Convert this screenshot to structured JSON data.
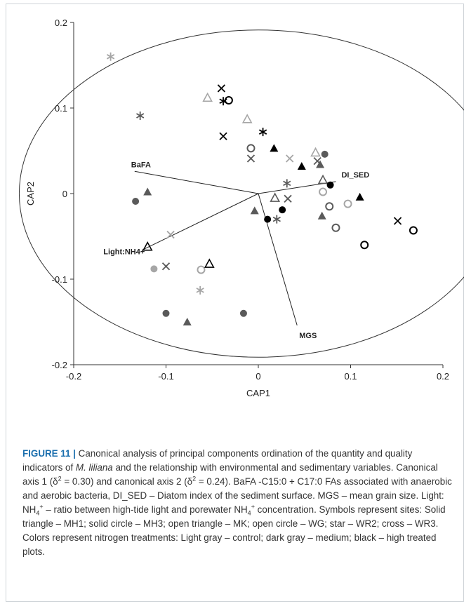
{
  "chart_data": {
    "type": "scatter",
    "xlabel": "CAP1",
    "ylabel": "CAP2",
    "xlim": [
      -0.2,
      0.2
    ],
    "ylim": [
      -0.2,
      0.2
    ],
    "x_ticks": [
      "-0.2",
      "-0.1",
      "0",
      "0.1",
      "0.2"
    ],
    "y_ticks": [
      "0.2",
      "0.1",
      "0",
      "-0.1",
      "-0.2"
    ],
    "grid": false,
    "colors": {
      "light": "#a6a6a6",
      "medium": "#5a5a5a",
      "high": "#000000",
      "vector": "#222222"
    },
    "vectors": [
      {
        "label": "BaFA",
        "x": -0.134,
        "y": 0.026
      },
      {
        "label": "DI_SED",
        "x": 0.084,
        "y": 0.014
      },
      {
        "label": "Light:NH4+",
        "x": -0.126,
        "y": -0.066
      },
      {
        "label": "MGS",
        "x": 0.042,
        "y": -0.154
      }
    ],
    "points": [
      {
        "x": -0.16,
        "y": 0.16,
        "marker": "star",
        "shade": "light"
      },
      {
        "x": -0.128,
        "y": 0.091,
        "marker": "star",
        "shade": "medium"
      },
      {
        "x": -0.04,
        "y": 0.123,
        "marker": "cross",
        "shade": "high"
      },
      {
        "x": -0.055,
        "y": 0.112,
        "marker": "open-triangle",
        "shade": "light"
      },
      {
        "x": -0.038,
        "y": 0.108,
        "marker": "star",
        "shade": "high"
      },
      {
        "x": -0.032,
        "y": 0.109,
        "marker": "open-circle",
        "shade": "high"
      },
      {
        "x": -0.038,
        "y": 0.067,
        "marker": "cross",
        "shade": "high"
      },
      {
        "x": -0.012,
        "y": 0.087,
        "marker": "open-triangle",
        "shade": "light"
      },
      {
        "x": 0.005,
        "y": 0.072,
        "marker": "star",
        "shade": "high"
      },
      {
        "x": -0.008,
        "y": 0.053,
        "marker": "open-circle",
        "shade": "medium"
      },
      {
        "x": -0.008,
        "y": 0.041,
        "marker": "cross",
        "shade": "medium"
      },
      {
        "x": 0.017,
        "y": 0.053,
        "marker": "solid-triangle",
        "shade": "high"
      },
      {
        "x": 0.034,
        "y": 0.041,
        "marker": "cross",
        "shade": "light"
      },
      {
        "x": 0.047,
        "y": 0.032,
        "marker": "solid-triangle",
        "shade": "high"
      },
      {
        "x": 0.062,
        "y": 0.048,
        "marker": "open-triangle",
        "shade": "light"
      },
      {
        "x": 0.072,
        "y": 0.046,
        "marker": "solid-circle",
        "shade": "medium"
      },
      {
        "x": 0.064,
        "y": 0.038,
        "marker": "cross",
        "shade": "medium"
      },
      {
        "x": 0.067,
        "y": 0.034,
        "marker": "solid-triangle",
        "shade": "medium"
      },
      {
        "x": 0.031,
        "y": 0.012,
        "marker": "star",
        "shade": "medium"
      },
      {
        "x": 0.07,
        "y": 0.016,
        "marker": "open-triangle",
        "shade": "medium"
      },
      {
        "x": 0.078,
        "y": 0.01,
        "marker": "solid-circle",
        "shade": "high"
      },
      {
        "x": 0.07,
        "y": 0.002,
        "marker": "open-circle",
        "shade": "light"
      },
      {
        "x": 0.11,
        "y": -0.004,
        "marker": "solid-triangle",
        "shade": "high"
      },
      {
        "x": 0.018,
        "y": -0.005,
        "marker": "open-triangle",
        "shade": "medium"
      },
      {
        "x": 0.032,
        "y": -0.006,
        "marker": "cross",
        "shade": "medium"
      },
      {
        "x": 0.077,
        "y": -0.015,
        "marker": "open-circle",
        "shade": "medium"
      },
      {
        "x": 0.097,
        "y": -0.012,
        "marker": "open-circle",
        "shade": "light"
      },
      {
        "x": -0.133,
        "y": -0.009,
        "marker": "solid-circle",
        "shade": "medium"
      },
      {
        "x": -0.12,
        "y": 0.002,
        "marker": "solid-triangle",
        "shade": "medium"
      },
      {
        "x": -0.004,
        "y": -0.02,
        "marker": "solid-triangle",
        "shade": "medium"
      },
      {
        "x": 0.026,
        "y": -0.019,
        "marker": "solid-circle",
        "shade": "high"
      },
      {
        "x": 0.01,
        "y": -0.03,
        "marker": "solid-circle",
        "shade": "high"
      },
      {
        "x": 0.02,
        "y": -0.03,
        "marker": "star",
        "shade": "medium"
      },
      {
        "x": 0.069,
        "y": -0.026,
        "marker": "solid-triangle",
        "shade": "medium"
      },
      {
        "x": 0.084,
        "y": -0.04,
        "marker": "open-circle",
        "shade": "medium"
      },
      {
        "x": 0.151,
        "y": -0.032,
        "marker": "cross",
        "shade": "high"
      },
      {
        "x": 0.168,
        "y": -0.043,
        "marker": "open-circle",
        "shade": "high"
      },
      {
        "x": 0.115,
        "y": -0.06,
        "marker": "open-circle",
        "shade": "high"
      },
      {
        "x": -0.095,
        "y": -0.048,
        "marker": "cross",
        "shade": "light"
      },
      {
        "x": -0.12,
        "y": -0.062,
        "marker": "open-triangle",
        "shade": "high"
      },
      {
        "x": -0.113,
        "y": -0.088,
        "marker": "solid-circle",
        "shade": "light"
      },
      {
        "x": -0.1,
        "y": -0.085,
        "marker": "cross",
        "shade": "medium"
      },
      {
        "x": -0.062,
        "y": -0.089,
        "marker": "open-circle",
        "shade": "light"
      },
      {
        "x": -0.053,
        "y": -0.082,
        "marker": "open-triangle",
        "shade": "high"
      },
      {
        "x": -0.063,
        "y": -0.113,
        "marker": "star",
        "shade": "light"
      },
      {
        "x": -0.1,
        "y": -0.14,
        "marker": "solid-circle",
        "shade": "medium"
      },
      {
        "x": -0.077,
        "y": -0.15,
        "marker": "solid-triangle",
        "shade": "medium"
      },
      {
        "x": -0.016,
        "y": -0.14,
        "marker": "solid-circle",
        "shade": "medium"
      }
    ]
  },
  "caption": {
    "label": "FIGURE 11 |",
    "p1": " Canonical analysis of principal components ordination of the quantity and quality indicators of ",
    "species": "M. liliana",
    "p2": " and the relationship with environmental and sedimentary variables. Canonical axis 1 (δ",
    "p3": " = 0.30) and canonical axis 2 (δ",
    "p4": " = 0.24). BaFA -C15:0 + C17:0 FAs associated with anaerobic and aerobic bacteria, DI_SED – Diatom index of the sediment surface. MGS – mean grain size. Light: NH",
    "p5": " – ratio between high-tide light and porewater NH",
    "p6": " concentration. Symbols represent sites: Solid triangle – MH1; solid circle – MH3; open triangle – MK; open circle – WG; star – WR2; cross – WR3. Colors represent nitrogen treatments: Light gray – control; dark gray – medium; black – high treated plots.",
    "sup_sq": "2",
    "sub_4": "4",
    "sup_plus": "+"
  }
}
